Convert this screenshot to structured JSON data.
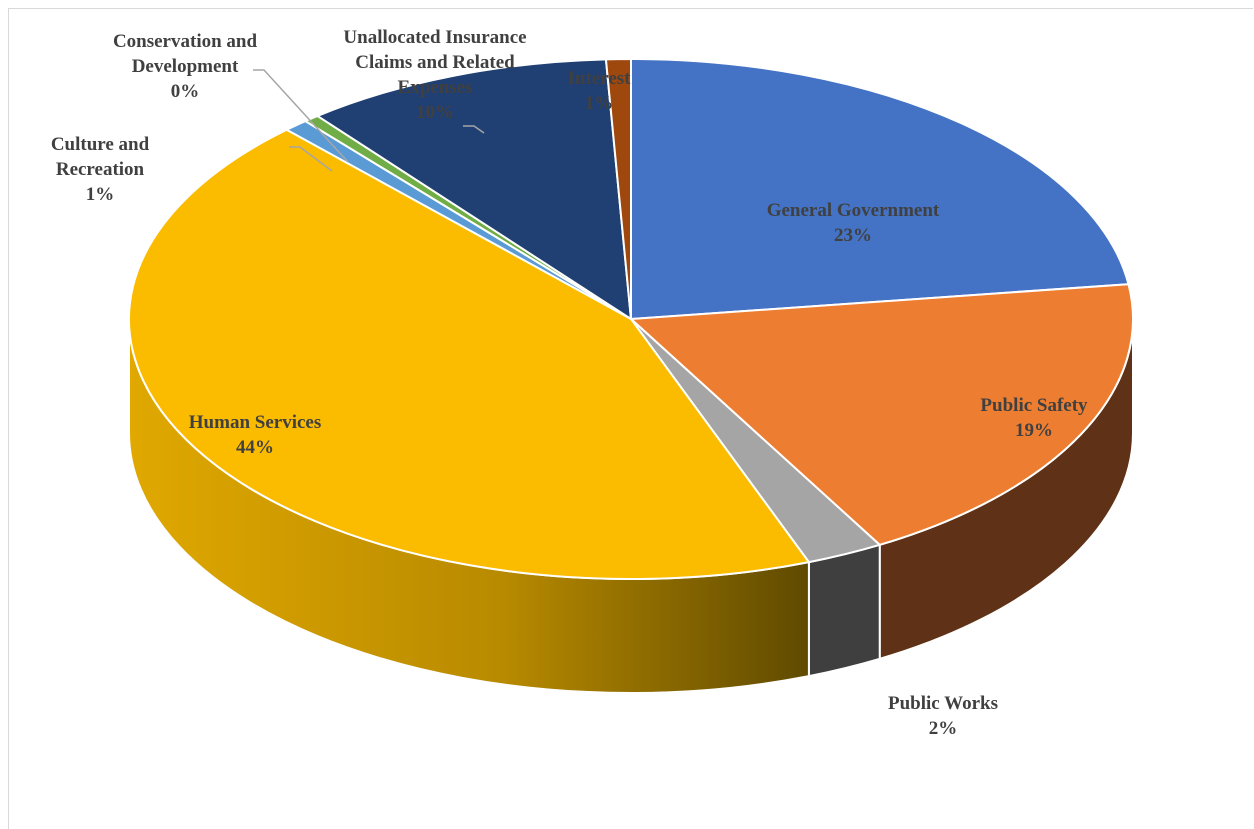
{
  "chart_data": {
    "type": "pie",
    "variant": "3d",
    "title": "",
    "slices": [
      {
        "label": "General Government",
        "value": 23,
        "value_label": "23%",
        "color": "#4472c4",
        "side_color": "#27457d",
        "label_lines": [
          "General Government",
          "23%"
        ]
      },
      {
        "label": "Public Safety",
        "value": 19,
        "value_label": "19%",
        "color": "#ed7d31",
        "side_color": "#5f3116",
        "label_lines": [
          "Public Safety",
          "19%"
        ]
      },
      {
        "label": "Public Works",
        "value": 2.5,
        "value_label": "2%",
        "color": "#a5a5a5",
        "side_color": "#3f3f3f",
        "label_lines": [
          "Public Works",
          "2%"
        ]
      },
      {
        "label": "Human Services",
        "value": 44,
        "value_label": "44%",
        "color": "#fbbc00",
        "side_color": "#c89400",
        "label_lines": [
          "Human Services",
          "44%"
        ]
      },
      {
        "label": "Culture and Recreation",
        "value": 0.8,
        "value_label": "1%",
        "color": "#5b9bd5",
        "side_color": "#2e5a82",
        "label_lines": [
          "Culture and",
          "Recreation",
          "1%"
        ]
      },
      {
        "label": "Conservation and Development",
        "value": 0.5,
        "value_label": "0%",
        "color": "#70ad47",
        "side_color": "#3d6625",
        "label_lines": [
          "Conservation and",
          "Development",
          "0%"
        ]
      },
      {
        "label": "Unallocated Insurance Claims and Related Expenses",
        "value": 10,
        "value_label": "10%",
        "color": "#203f73",
        "side_color": "#10203a",
        "label_lines": [
          "Unallocated Insurance",
          "Claims and Related",
          "Expenses",
          "10%"
        ]
      },
      {
        "label": "Interest",
        "value": 0.8,
        "value_label": "1%",
        "color": "#9e480e",
        "side_color": "#4f2407",
        "label_lines": [
          "Interest",
          "1%"
        ]
      }
    ],
    "legend": "none",
    "label_color": "#404040"
  }
}
